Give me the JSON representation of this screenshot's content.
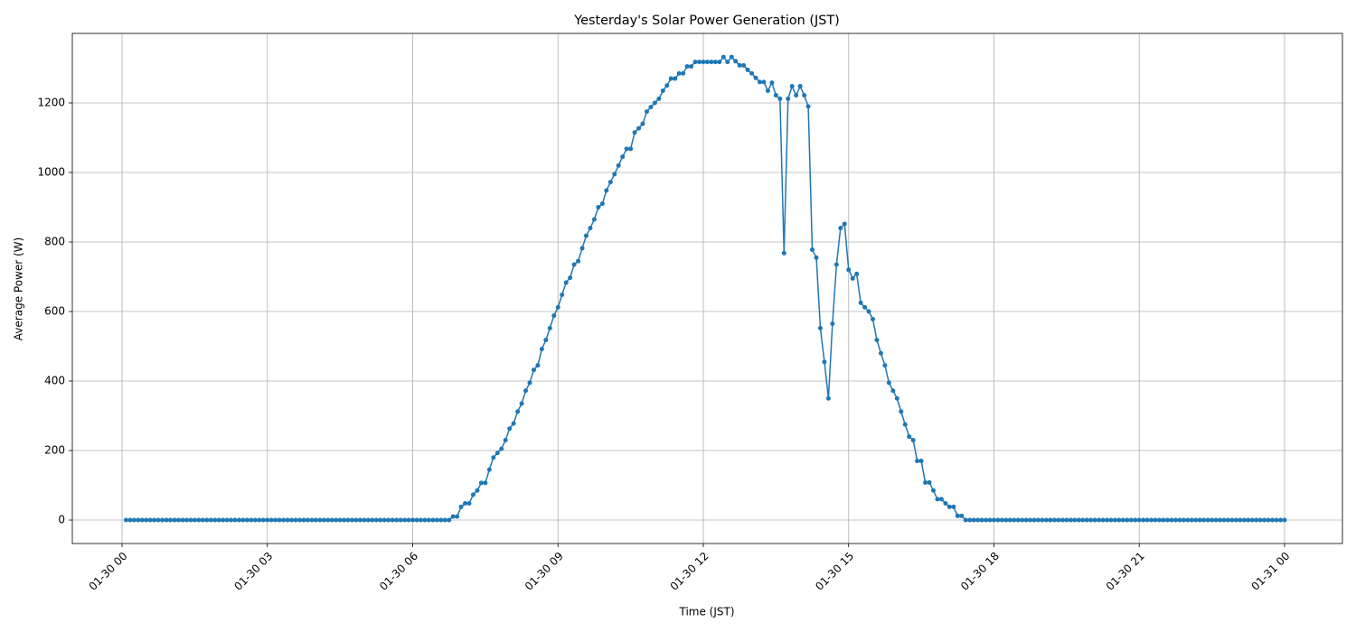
{
  "chart_data": {
    "type": "line",
    "title": "Yesterday's Solar Power Generation (JST)",
    "x_label": "Time (JST)",
    "y_label": "Average Power (W)",
    "grid": true,
    "markers": true,
    "xlim": [
      -61.6,
      1511.7
    ],
    "ylim": [
      -67.5,
      1400
    ],
    "xticks": [
      {
        "value": 0,
        "label": "01-30 00"
      },
      {
        "value": 180,
        "label": "01-30 03"
      },
      {
        "value": 360,
        "label": "01-30 06"
      },
      {
        "value": 540,
        "label": "01-30 09"
      },
      {
        "value": 720,
        "label": "01-30 12"
      },
      {
        "value": 900,
        "label": "01-30 15"
      },
      {
        "value": 1080,
        "label": "01-30 18"
      },
      {
        "value": 1260,
        "label": "01-30 21"
      },
      {
        "value": 1440,
        "label": "01-31 00"
      }
    ],
    "yticks": [
      0,
      200,
      400,
      600,
      800,
      1000,
      1200
    ],
    "x": [
      5,
      10,
      15,
      20,
      25,
      30,
      35,
      40,
      45,
      50,
      55,
      60,
      65,
      70,
      75,
      80,
      85,
      90,
      95,
      100,
      105,
      110,
      115,
      120,
      125,
      130,
      135,
      140,
      145,
      150,
      155,
      160,
      165,
      170,
      175,
      180,
      185,
      190,
      195,
      200,
      205,
      210,
      215,
      220,
      225,
      230,
      235,
      240,
      245,
      250,
      255,
      260,
      265,
      270,
      275,
      280,
      285,
      290,
      295,
      300,
      305,
      310,
      315,
      320,
      325,
      330,
      335,
      340,
      345,
      350,
      355,
      360,
      365,
      370,
      375,
      380,
      385,
      390,
      395,
      400,
      405,
      410,
      415,
      420,
      425,
      430,
      435,
      440,
      445,
      450,
      455,
      460,
      465,
      470,
      475,
      480,
      485,
      490,
      495,
      500,
      505,
      510,
      515,
      520,
      525,
      530,
      535,
      540,
      545,
      550,
      555,
      560,
      565,
      570,
      575,
      580,
      585,
      590,
      595,
      600,
      605,
      610,
      615,
      620,
      625,
      630,
      635,
      640,
      645,
      650,
      655,
      660,
      665,
      670,
      675,
      680,
      685,
      690,
      695,
      700,
      705,
      710,
      715,
      720,
      725,
      730,
      735,
      740,
      745,
      750,
      755,
      760,
      765,
      770,
      775,
      780,
      785,
      790,
      795,
      800,
      805,
      810,
      815,
      820,
      825,
      830,
      835,
      840,
      845,
      850,
      855,
      860,
      865,
      870,
      875,
      880,
      885,
      890,
      895,
      900,
      905,
      910,
      915,
      920,
      925,
      930,
      935,
      940,
      945,
      950,
      955,
      960,
      965,
      970,
      975,
      980,
      985,
      990,
      995,
      1000,
      1005,
      1010,
      1015,
      1020,
      1025,
      1030,
      1035,
      1040,
      1045,
      1050,
      1055,
      1060,
      1065,
      1070,
      1075,
      1080,
      1085,
      1090,
      1095,
      1100,
      1105,
      1110,
      1115,
      1120,
      1125,
      1130,
      1135,
      1140,
      1145,
      1150,
      1155,
      1160,
      1165,
      1170,
      1175,
      1180,
      1185,
      1190,
      1195,
      1200,
      1205,
      1210,
      1215,
      1220,
      1225,
      1230,
      1235,
      1240,
      1245,
      1250,
      1255,
      1260,
      1265,
      1270,
      1275,
      1280,
      1285,
      1290,
      1295,
      1300,
      1305,
      1310,
      1315,
      1320,
      1325,
      1330,
      1335,
      1340,
      1345,
      1350,
      1355,
      1360,
      1365,
      1370,
      1375,
      1380,
      1385,
      1390,
      1395,
      1400,
      1405,
      1410,
      1415,
      1420,
      1425,
      1430,
      1435,
      1440
    ],
    "series": [
      {
        "color": "#1f77b4",
        "values": [
          0,
          0,
          0,
          0,
          0,
          0,
          0,
          0,
          0,
          0,
          0,
          0,
          0,
          0,
          0,
          0,
          0,
          0,
          0,
          0,
          0,
          0,
          0,
          0,
          0,
          0,
          0,
          0,
          0,
          0,
          0,
          0,
          0,
          0,
          0,
          0,
          0,
          0,
          0,
          0,
          0,
          0,
          0,
          0,
          0,
          0,
          0,
          0,
          0,
          0,
          0,
          0,
          0,
          0,
          0,
          0,
          0,
          0,
          0,
          0,
          0,
          0,
          0,
          0,
          0,
          0,
          0,
          0,
          0,
          0,
          0,
          0,
          0,
          0,
          0,
          0,
          0,
          0,
          0,
          0,
          0,
          10,
          10,
          38,
          48,
          48,
          73,
          85,
          107,
          107,
          145,
          180,
          193,
          205,
          230,
          263,
          278,
          312,
          335,
          372,
          395,
          432,
          445,
          492,
          518,
          552,
          588,
          612,
          648,
          683,
          697,
          735,
          745,
          782,
          818,
          840,
          865,
          900,
          910,
          948,
          972,
          995,
          1020,
          1045,
          1068,
          1068,
          1115,
          1127,
          1140,
          1175,
          1188,
          1200,
          1212,
          1235,
          1250,
          1270,
          1270,
          1285,
          1285,
          1305,
          1305,
          1318,
          1318,
          1318,
          1318,
          1318,
          1318,
          1318,
          1332,
          1318,
          1332,
          1320,
          1308,
          1308,
          1295,
          1285,
          1272,
          1260,
          1260,
          1235,
          1258,
          1222,
          1212,
          768,
          1212,
          1248,
          1222,
          1248,
          1222,
          1190,
          778,
          755,
          552,
          455,
          350,
          565,
          735,
          840,
          852,
          720,
          695,
          708,
          625,
          612,
          600,
          578,
          518,
          480,
          445,
          395,
          372,
          350,
          312,
          275,
          240,
          230,
          170,
          170,
          108,
          108,
          85,
          60,
          60,
          48,
          38,
          38,
          12,
          12,
          0,
          0,
          0,
          0,
          0,
          0,
          0,
          0,
          0,
          0,
          0,
          0,
          0,
          0,
          0,
          0,
          0,
          0,
          0,
          0,
          0,
          0,
          0,
          0,
          0,
          0,
          0,
          0,
          0,
          0,
          0,
          0,
          0,
          0,
          0,
          0,
          0,
          0,
          0,
          0,
          0,
          0,
          0,
          0,
          0,
          0,
          0,
          0,
          0,
          0,
          0,
          0,
          0,
          0,
          0,
          0,
          0,
          0,
          0,
          0,
          0,
          0,
          0,
          0,
          0,
          0,
          0,
          0,
          0,
          0,
          0,
          0,
          0,
          0,
          0,
          0,
          0,
          0,
          0,
          0
        ]
      }
    ]
  }
}
